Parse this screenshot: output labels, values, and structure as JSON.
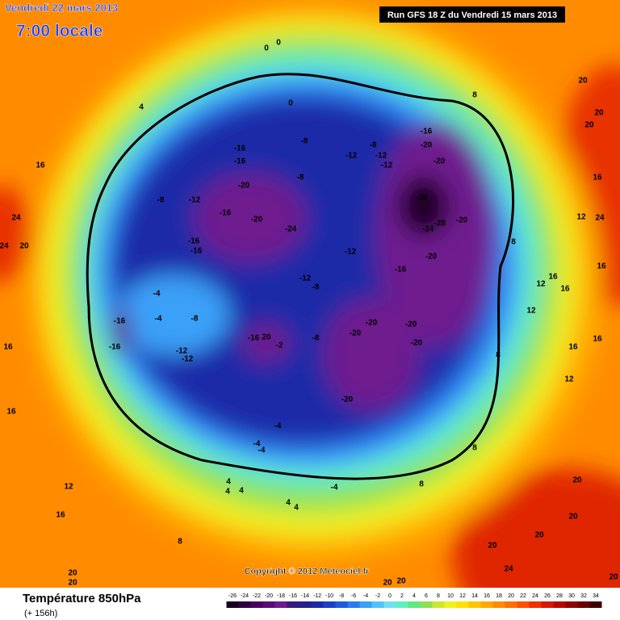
{
  "header": {
    "date": "Vendredi 22 mars 2013",
    "time": "7:00 locale",
    "run": "Run GFS 18 Z du Vendredi 15 mars 2013"
  },
  "copyright": "Copyright © 2012 Meteociel.fr",
  "footer": {
    "title": "Température 850hPa",
    "lead": "(+ 156h)"
  },
  "colorbar": {
    "ticks": [
      -26,
      -24,
      -22,
      -20,
      -18,
      -16,
      -14,
      -12,
      -10,
      -8,
      -6,
      -4,
      -2,
      0,
      2,
      4,
      6,
      8,
      10,
      12,
      14,
      16,
      18,
      20,
      22,
      24,
      26,
      28,
      30,
      32,
      34
    ],
    "colors": [
      "#1a0020",
      "#2e0040",
      "#470060",
      "#5c0a78",
      "#6e1a8e",
      "#3a1a80",
      "#24208c",
      "#1c2aa8",
      "#1a40c8",
      "#1e5ae0",
      "#2a7af0",
      "#3aa0f8",
      "#50c4fa",
      "#70e0f0",
      "#5ef0c0",
      "#60e880",
      "#90e050",
      "#c8e830",
      "#f0f020",
      "#ffe000",
      "#ffc400",
      "#ffa800",
      "#ff8c00",
      "#ff7000",
      "#ff5000",
      "#f03000",
      "#d81800",
      "#b80800",
      "#900000",
      "#6a0000",
      "#400000"
    ]
  },
  "contour_labels": [
    "0",
    "0",
    "4",
    "16",
    "24",
    "20",
    "24",
    "0",
    "-16",
    "-16",
    "-8",
    "-8",
    "-20",
    "-16",
    "-20",
    "-24",
    "-12",
    "-8",
    "-16",
    "-16",
    "-12",
    "-12",
    "-8",
    "-12",
    "-8",
    "-12",
    "-12",
    "-16",
    "-20",
    "-20",
    "-28",
    "-28",
    "-24",
    "-20",
    "-20",
    "-16",
    "-4",
    "-4",
    "-8",
    "-16",
    "-16",
    "-12",
    "-12",
    "-16",
    "20",
    "-2",
    "-8",
    "-20",
    "-20",
    "-20",
    "-20",
    "-20",
    "-4",
    "-4",
    "-4",
    "4",
    "4",
    "4",
    "4",
    "4",
    "-4",
    "8",
    "8",
    "8",
    "8",
    "12",
    "12",
    "16",
    "16",
    "20",
    "20",
    "20",
    "16",
    "12",
    "24",
    "16",
    "16",
    "12",
    "16",
    "20",
    "20",
    "20",
    "20",
    "24",
    "20",
    "16",
    "16",
    "12",
    "16",
    "8",
    "20",
    "20",
    "20",
    "20",
    "8"
  ]
}
